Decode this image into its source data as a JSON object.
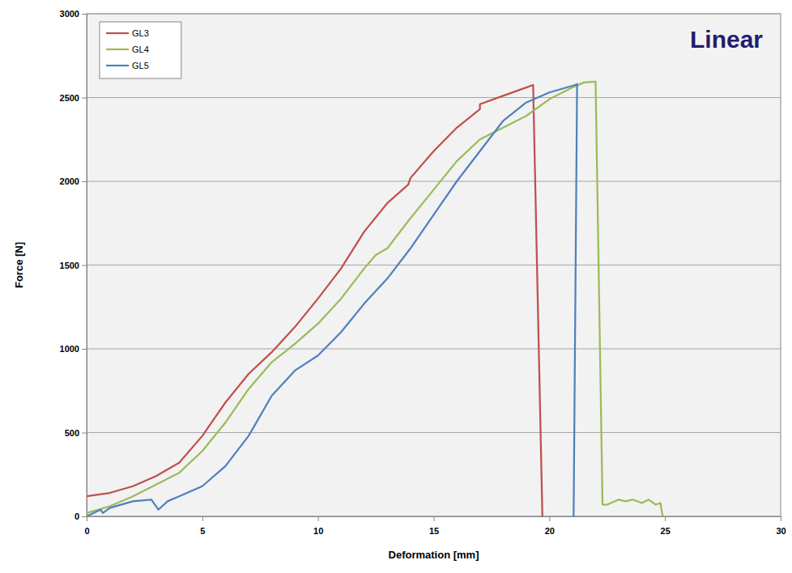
{
  "chart_data": {
    "type": "line",
    "title": "Linear",
    "x_label": "Deformation [mm]",
    "y_label": "Force [N]",
    "xlim": [
      0,
      30
    ],
    "xticks": [
      0,
      5,
      10,
      15,
      20,
      25,
      30
    ],
    "ylim": [
      0,
      3000
    ],
    "yticks": [
      0,
      500,
      1000,
      1500,
      2000,
      2500,
      3000
    ],
    "grid": true,
    "legend": "upper left",
    "series": [
      {
        "name": "GL3",
        "color": "#c0504d",
        "x": [
          0,
          1,
          2,
          3,
          4,
          5,
          6,
          7,
          8,
          9,
          10,
          11,
          12,
          13,
          13.9,
          14,
          15,
          16,
          17,
          17,
          18,
          19,
          19.3,
          19.7
        ],
        "values": [
          120,
          140,
          180,
          240,
          320,
          480,
          680,
          850,
          980,
          1130,
          1300,
          1480,
          1700,
          1870,
          1980,
          2020,
          2180,
          2320,
          2430,
          2460,
          2510,
          2560,
          2575,
          0
        ]
      },
      {
        "name": "GL4",
        "color": "#9bbb59",
        "x": [
          0,
          1,
          2,
          3,
          4,
          5,
          6,
          7,
          8,
          9,
          10,
          11,
          12,
          12.5,
          13,
          14,
          15,
          16,
          17,
          18,
          19,
          20,
          21,
          21.5,
          22,
          22.3,
          22.5,
          23,
          23.3,
          23.6,
          24,
          24.3,
          24.6,
          24.8,
          24.9
        ],
        "values": [
          20,
          60,
          120,
          190,
          260,
          390,
          560,
          760,
          920,
          1030,
          1150,
          1300,
          1480,
          1560,
          1600,
          1780,
          1950,
          2120,
          2250,
          2320,
          2390,
          2490,
          2560,
          2590,
          2595,
          70,
          70,
          100,
          90,
          100,
          80,
          100,
          70,
          80,
          0
        ]
      },
      {
        "name": "GL5",
        "color": "#4f81bd",
        "x": [
          0,
          0.6,
          0.7,
          1,
          2,
          2.8,
          3.1,
          3.5,
          4,
          5,
          6,
          7,
          8,
          9,
          10,
          11,
          12,
          13,
          14,
          15,
          16,
          17,
          18,
          19,
          20,
          21,
          21.2,
          21.05
        ],
        "values": [
          0,
          40,
          20,
          50,
          90,
          100,
          40,
          90,
          120,
          180,
          300,
          480,
          720,
          870,
          960,
          1100,
          1270,
          1420,
          1600,
          1800,
          2000,
          2180,
          2360,
          2470,
          2530,
          2570,
          2580,
          0
        ]
      }
    ]
  }
}
